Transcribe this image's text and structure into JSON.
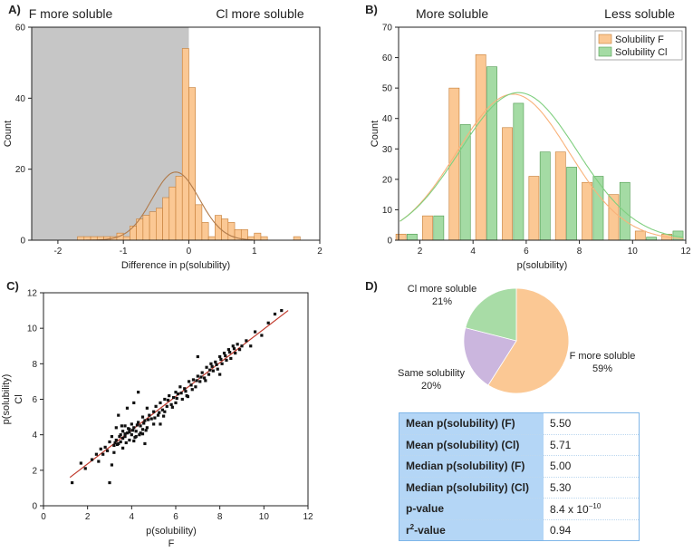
{
  "chart_data": [
    {
      "panel": "A)",
      "type": "bar",
      "xlabel": "Difference in p(solubility)",
      "ylabel": "Count",
      "xlim": [
        -2.4,
        2
      ],
      "ylim": [
        0,
        60
      ],
      "xticks": [
        "-2",
        "-1",
        "0",
        "1",
        "2"
      ],
      "yticks": [
        "0",
        "20",
        "40",
        "60"
      ],
      "region_left_label": "F more soluble",
      "region_right_label": "Cl more soluble",
      "shaded_region": [
        -2.4,
        0
      ],
      "bin_width": 0.1,
      "bins": [
        {
          "x": -1.65,
          "count": 1
        },
        {
          "x": -1.55,
          "count": 1
        },
        {
          "x": -1.45,
          "count": 1
        },
        {
          "x": -1.35,
          "count": 1
        },
        {
          "x": -1.25,
          "count": 1
        },
        {
          "x": -1.15,
          "count": 1
        },
        {
          "x": -1.05,
          "count": 2
        },
        {
          "x": -0.95,
          "count": 1
        },
        {
          "x": -0.85,
          "count": 4
        },
        {
          "x": -0.75,
          "count": 6
        },
        {
          "x": -0.65,
          "count": 7
        },
        {
          "x": -0.55,
          "count": 8
        },
        {
          "x": -0.45,
          "count": 9
        },
        {
          "x": -0.35,
          "count": 12
        },
        {
          "x": -0.25,
          "count": 15
        },
        {
          "x": -0.15,
          "count": 18
        },
        {
          "x": -0.05,
          "count": 54
        },
        {
          "x": 0.05,
          "count": 43
        },
        {
          "x": 0.15,
          "count": 10
        },
        {
          "x": 0.25,
          "count": 5
        },
        {
          "x": 0.35,
          "count": 1
        },
        {
          "x": 0.45,
          "count": 7
        },
        {
          "x": 0.55,
          "count": 6
        },
        {
          "x": 0.65,
          "count": 5
        },
        {
          "x": 0.75,
          "count": 3
        },
        {
          "x": 0.85,
          "count": 3
        },
        {
          "x": 0.95,
          "count": 1
        },
        {
          "x": 1.05,
          "count": 2
        },
        {
          "x": 1.15,
          "count": 1
        },
        {
          "x": 1.65,
          "count": 1
        }
      ],
      "fit": {
        "type": "normal",
        "mean": -0.2,
        "sd": 0.36,
        "peak": 19.2,
        "color": "#b07a4a"
      },
      "bar_color": "#fbc894",
      "bar_edge": "#c47c35",
      "shade_color": "#c6c6c6"
    },
    {
      "panel": "B)",
      "type": "bar",
      "xlabel": "p(solubility)",
      "ylabel": "Count",
      "xlim": [
        1.2,
        12
      ],
      "ylim": [
        0,
        70
      ],
      "xticks": [
        "2",
        "4",
        "6",
        "8",
        "10",
        "12"
      ],
      "yticks": [
        "0",
        "10",
        "20",
        "30",
        "40",
        "50",
        "60",
        "70"
      ],
      "region_left_label": "More soluble",
      "region_right_label": "Less soluble",
      "categories": [
        "1.5",
        "2.5",
        "3.5",
        "4.5",
        "5.5",
        "6.5",
        "7.5",
        "8.5",
        "9.5",
        "10.5",
        "11.5"
      ],
      "series": [
        {
          "name": "Solubility F",
          "values": [
            2,
            8,
            50,
            61,
            37,
            21,
            29,
            19,
            15,
            3,
            2
          ],
          "color": "#fbc894",
          "edge": "#c47c35",
          "fit": {
            "mean": 5.5,
            "sd": 2.1,
            "peak": 48,
            "color": "#f9b27a"
          }
        },
        {
          "name": "Solubility Cl",
          "values": [
            2,
            8,
            38,
            57,
            45,
            29,
            24,
            21,
            19,
            1,
            3
          ],
          "color": "#a4dba4",
          "edge": "#4d9a4d",
          "fit": {
            "mean": 5.71,
            "sd": 2.2,
            "peak": 48.5,
            "color": "#7fcf7f"
          }
        }
      ],
      "legend": "top-right"
    },
    {
      "panel": "C)",
      "type": "scatter",
      "xlabel": "p(solubility)",
      "xsublabel": "F",
      "ylabel": "p(solubility)",
      "ysublabel": "Cl",
      "xlim": [
        0,
        12
      ],
      "ylim": [
        0,
        12
      ],
      "xticks": [
        "0",
        "2",
        "4",
        "6",
        "8",
        "10",
        "12"
      ],
      "yticks": [
        "0",
        "2",
        "4",
        "6",
        "8",
        "10",
        "12"
      ],
      "fit_line": {
        "x": [
          1.2,
          11.1
        ],
        "y": [
          1.6,
          11.0
        ],
        "color": "#c0392b"
      },
      "points": [
        [
          1.3,
          1.3
        ],
        [
          1.7,
          2.4
        ],
        [
          1.9,
          2.1
        ],
        [
          2.2,
          2.6
        ],
        [
          2.4,
          2.9
        ],
        [
          2.5,
          2.5
        ],
        [
          2.6,
          3.2
        ],
        [
          2.7,
          2.9
        ],
        [
          2.8,
          3.3
        ],
        [
          2.9,
          3.1
        ],
        [
          3.0,
          3.6
        ],
        [
          3.0,
          1.3
        ],
        [
          3.1,
          2.3
        ],
        [
          3.1,
          3.9
        ],
        [
          3.2,
          3.4
        ],
        [
          3.2,
          3.0
        ],
        [
          3.3,
          3.7
        ],
        [
          3.3,
          4.4
        ],
        [
          3.4,
          3.5
        ],
        [
          3.4,
          5.1
        ],
        [
          3.5,
          4.0
        ],
        [
          3.5,
          3.6
        ],
        [
          3.6,
          4.2
        ],
        [
          3.6,
          3.8
        ],
        [
          3.7,
          4.5
        ],
        [
          3.7,
          3.9
        ],
        [
          3.8,
          4.1
        ],
        [
          3.8,
          5.5
        ],
        [
          3.9,
          4.3
        ],
        [
          3.9,
          3.7
        ],
        [
          4.0,
          4.6
        ],
        [
          4.0,
          4.0
        ],
        [
          4.1,
          4.4
        ],
        [
          4.1,
          5.8
        ],
        [
          4.2,
          4.2
        ],
        [
          4.2,
          3.9
        ],
        [
          4.3,
          4.7
        ],
        [
          4.3,
          6.4
        ],
        [
          4.4,
          4.5
        ],
        [
          4.4,
          4.1
        ],
        [
          4.5,
          5.0
        ],
        [
          4.5,
          4.3
        ],
        [
          4.6,
          4.8
        ],
        [
          4.6,
          3.5
        ],
        [
          4.7,
          4.4
        ],
        [
          4.7,
          5.5
        ],
        [
          4.8,
          5.1
        ],
        [
          4.9,
          4.9
        ],
        [
          5.0,
          5.3
        ],
        [
          5.0,
          4.6
        ],
        [
          5.1,
          5.6
        ],
        [
          5.2,
          5.1
        ],
        [
          5.3,
          5.8
        ],
        [
          5.3,
          4.6
        ],
        [
          5.4,
          5.4
        ],
        [
          5.5,
          6.0
        ],
        [
          5.5,
          5.3
        ],
        [
          5.6,
          5.6
        ],
        [
          5.7,
          6.2
        ],
        [
          5.8,
          5.7
        ],
        [
          5.9,
          6.1
        ],
        [
          6.0,
          6.4
        ],
        [
          6.0,
          5.8
        ],
        [
          6.1,
          6.3
        ],
        [
          6.2,
          6.7
        ],
        [
          6.3,
          6.0
        ],
        [
          6.4,
          6.6
        ],
        [
          6.5,
          6.2
        ],
        [
          6.6,
          7.0
        ],
        [
          6.7,
          6.8
        ],
        [
          6.8,
          7.1
        ],
        [
          6.9,
          6.7
        ],
        [
          7.0,
          7.3
        ],
        [
          7.0,
          8.4
        ],
        [
          7.1,
          7.0
        ],
        [
          7.2,
          7.5
        ],
        [
          7.3,
          7.2
        ],
        [
          7.4,
          7.8
        ],
        [
          7.5,
          7.4
        ],
        [
          7.6,
          8.0
        ],
        [
          7.7,
          7.6
        ],
        [
          7.8,
          8.1
        ],
        [
          7.9,
          7.7
        ],
        [
          8.0,
          8.4
        ],
        [
          8.0,
          7.4
        ],
        [
          8.1,
          8.0
        ],
        [
          8.2,
          8.6
        ],
        [
          8.3,
          8.2
        ],
        [
          8.4,
          8.8
        ],
        [
          8.5,
          8.3
        ],
        [
          8.6,
          9.0
        ],
        [
          8.7,
          8.6
        ],
        [
          8.8,
          9.1
        ],
        [
          8.9,
          8.8
        ],
        [
          9.0,
          9.0
        ],
        [
          9.2,
          9.3
        ],
        [
          9.4,
          9.0
        ],
        [
          9.6,
          9.8
        ],
        [
          9.9,
          9.6
        ],
        [
          10.2,
          10.3
        ],
        [
          10.5,
          10.8
        ],
        [
          10.8,
          11.0
        ],
        [
          3.35,
          3.45
        ],
        [
          3.9,
          4.15
        ],
        [
          4.05,
          4.25
        ],
        [
          4.15,
          3.85
        ],
        [
          4.25,
          4.55
        ],
        [
          4.35,
          4.0
        ],
        [
          4.55,
          4.65
        ],
        [
          4.75,
          4.85
        ],
        [
          3.6,
          3.25
        ],
        [
          3.75,
          3.55
        ],
        [
          3.85,
          4.35
        ],
        [
          4.1,
          3.65
        ],
        [
          4.5,
          4.05
        ],
        [
          4.65,
          4.25
        ],
        [
          5.05,
          4.95
        ],
        [
          5.25,
          5.25
        ],
        [
          5.45,
          5.05
        ],
        [
          5.65,
          5.95
        ],
        [
          5.85,
          5.55
        ],
        [
          6.05,
          6.05
        ],
        [
          6.25,
          6.35
        ],
        [
          6.45,
          6.45
        ],
        [
          6.55,
          6.15
        ],
        [
          6.75,
          6.55
        ],
        [
          6.95,
          7.05
        ],
        [
          7.15,
          7.25
        ],
        [
          7.35,
          7.05
        ],
        [
          7.55,
          7.65
        ],
        [
          7.65,
          7.85
        ],
        [
          7.85,
          7.95
        ],
        [
          8.05,
          8.25
        ],
        [
          8.25,
          8.45
        ],
        [
          8.45,
          8.65
        ],
        [
          8.65,
          8.85
        ],
        [
          3.25,
          3.55
        ],
        [
          3.45,
          3.9
        ],
        [
          3.55,
          4.5
        ],
        [
          3.7,
          4.05
        ]
      ],
      "point_color": "#111111"
    },
    {
      "panel": "D)",
      "type": "pie",
      "slices": [
        {
          "label": "F more soluble",
          "value": 59,
          "display": "59%",
          "color": "#fbc894"
        },
        {
          "label": "Same solubility",
          "value": 20,
          "display": "20%",
          "color": "#cbb6de"
        },
        {
          "label": "Cl more soluble",
          "value": 21,
          "display": "21%",
          "color": "#a8dca6"
        }
      ]
    }
  ],
  "stats_table": [
    {
      "label": "Mean p(solubility) (F)",
      "value": "5.50"
    },
    {
      "label": "Mean p(solubility) (Cl)",
      "value": "5.71"
    },
    {
      "label": "Median p(solubility) (F)",
      "value": "5.00"
    },
    {
      "label": "Median p(solubility) (Cl)",
      "value": "5.30"
    },
    {
      "label": "p-value",
      "value": "8.4 x 10",
      "exponent": "−10"
    },
    {
      "label": "r2-value",
      "value": "0.94"
    }
  ]
}
